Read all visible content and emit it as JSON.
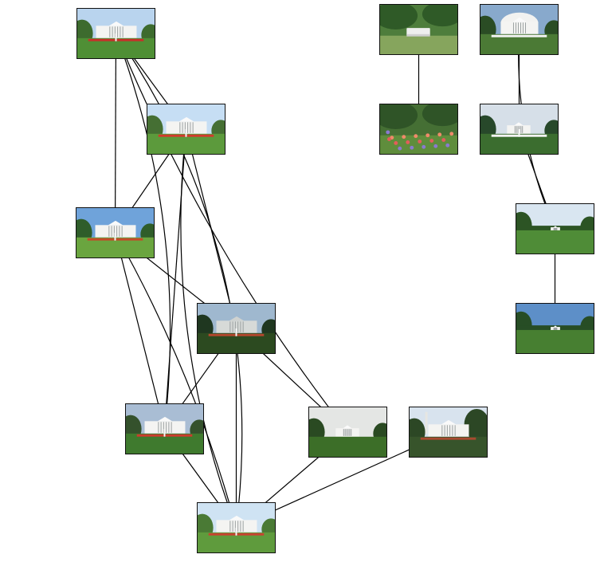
{
  "graph": {
    "nodes": [
      {
        "id": "n1",
        "name": "thumbnail-white-house-north-lawn-daytime"
      },
      {
        "id": "n2",
        "name": "thumbnail-white-house-fountain-clear-sky"
      },
      {
        "id": "n3",
        "name": "thumbnail-white-house-fountain-blue-sky"
      },
      {
        "id": "n4",
        "name": "thumbnail-white-house-dusk-shadows"
      },
      {
        "id": "n5",
        "name": "thumbnail-white-house-fountain-cloudy"
      },
      {
        "id": "n6",
        "name": "thumbnail-white-house-trees-overcast"
      },
      {
        "id": "n7",
        "name": "thumbnail-white-house-washington-monument"
      },
      {
        "id": "n8",
        "name": "thumbnail-white-house-fountain-lawn-front"
      },
      {
        "id": "n9",
        "name": "thumbnail-garden-bench"
      },
      {
        "id": "n10",
        "name": "thumbnail-garden-flowers"
      },
      {
        "id": "n11",
        "name": "thumbnail-white-house-south-portico"
      },
      {
        "id": "n12",
        "name": "thumbnail-white-house-south-fountain"
      },
      {
        "id": "n13",
        "name": "thumbnail-south-lawn-distant"
      },
      {
        "id": "n14",
        "name": "thumbnail-south-lawn-blue-sky"
      }
    ],
    "edges": [
      [
        "n1",
        "n2"
      ],
      [
        "n1",
        "n3"
      ],
      [
        "n1",
        "n5"
      ],
      [
        "n1",
        "n8"
      ],
      [
        "n1",
        "n6"
      ],
      [
        "n2",
        "n3"
      ],
      [
        "n2",
        "n4"
      ],
      [
        "n2",
        "n5"
      ],
      [
        "n2",
        "n8"
      ],
      [
        "n3",
        "n4"
      ],
      [
        "n3",
        "n5"
      ],
      [
        "n3",
        "n8"
      ],
      [
        "n4",
        "n5"
      ],
      [
        "n4",
        "n8"
      ],
      [
        "n4",
        "n6"
      ],
      [
        "n5",
        "n8"
      ],
      [
        "n6",
        "n8"
      ],
      [
        "n7",
        "n8"
      ],
      [
        "n9",
        "n10"
      ],
      [
        "n11",
        "n12"
      ],
      [
        "n11",
        "n13"
      ],
      [
        "n12",
        "n13"
      ],
      [
        "n13",
        "n14"
      ]
    ]
  }
}
